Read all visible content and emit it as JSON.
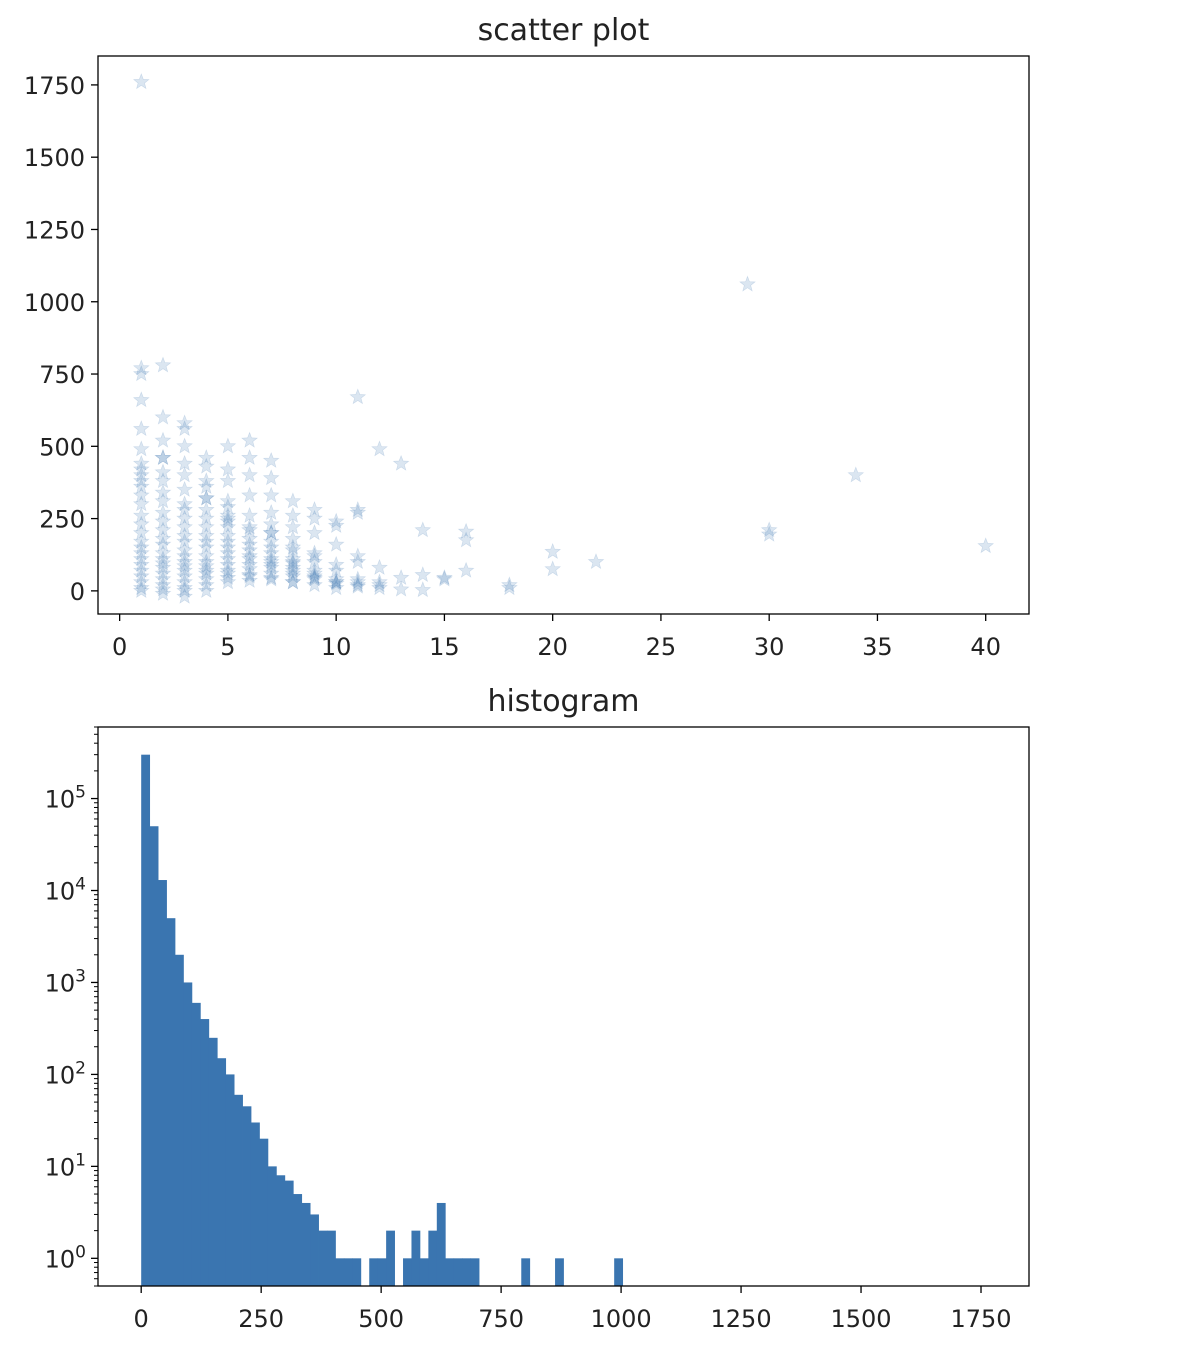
{
  "chart_data": [
    {
      "type": "scatter",
      "title": "scatter plot",
      "xlabel": "",
      "ylabel": "",
      "xlim": [
        -1,
        42
      ],
      "ylim": [
        -80,
        1850
      ],
      "x_ticks": [
        0,
        5,
        10,
        15,
        20,
        25,
        30,
        35,
        40
      ],
      "y_ticks": [
        0,
        250,
        500,
        750,
        1000,
        1250,
        1500,
        1750
      ],
      "marker": "star",
      "color": "#3a75b0",
      "alpha": 0.15,
      "series": [
        {
          "x": [
            1,
            2,
            1,
            1,
            3,
            1,
            1,
            2,
            2,
            1,
            1,
            11,
            29,
            34,
            30,
            30,
            40,
            12,
            13,
            14,
            16,
            16,
            20,
            20,
            22,
            18,
            18,
            15,
            15,
            14,
            16,
            13,
            12,
            12,
            11,
            11,
            11,
            11,
            11,
            10,
            10,
            10,
            10,
            10,
            10,
            9,
            9,
            9,
            9,
            9,
            9,
            8,
            8,
            8,
            8,
            8,
            8,
            7,
            7,
            7,
            7,
            7,
            6,
            6,
            6,
            6,
            5,
            5,
            5,
            5,
            5,
            4,
            4,
            4,
            4,
            3,
            3,
            3,
            2,
            2,
            2,
            1,
            1,
            1,
            3,
            4,
            5,
            6,
            7,
            2,
            3,
            4,
            5,
            6,
            7,
            8,
            1,
            2,
            3,
            4,
            5,
            6,
            7,
            1,
            2,
            3,
            4,
            5,
            6,
            7,
            8,
            9,
            1,
            2,
            3,
            4,
            5,
            6,
            7,
            8,
            9,
            10,
            1,
            2,
            3,
            4,
            5,
            6,
            7,
            8,
            1,
            2,
            3,
            4,
            5,
            6,
            7,
            8,
            9,
            1,
            2,
            3,
            4,
            5,
            6,
            7,
            8,
            9,
            10,
            11,
            12,
            1,
            2,
            3,
            4,
            5,
            6,
            7,
            8,
            9,
            10,
            11,
            12,
            13,
            14,
            1,
            2,
            3,
            4,
            5,
            6,
            7,
            8,
            9,
            10,
            11,
            1,
            2,
            3,
            4,
            5,
            6,
            7,
            1,
            2,
            3,
            4,
            5,
            6,
            7,
            8,
            1,
            2,
            3,
            4,
            5,
            6,
            1,
            2,
            3,
            4,
            5,
            1,
            2,
            3,
            4,
            1,
            2,
            3,
            1,
            2,
            3,
            4,
            1,
            2,
            3
          ],
          "y": [
            1760,
            780,
            770,
            750,
            580,
            660,
            560,
            600,
            460,
            490,
            420,
            670,
            1060,
            400,
            210,
            195,
            155,
            490,
            440,
            210,
            205,
            175,
            135,
            75,
            100,
            20,
            10,
            45,
            40,
            55,
            70,
            45,
            80,
            30,
            280,
            270,
            120,
            100,
            40,
            240,
            225,
            160,
            70,
            30,
            10,
            280,
            250,
            200,
            130,
            70,
            20,
            310,
            260,
            220,
            150,
            100,
            30,
            450,
            390,
            330,
            270,
            200,
            520,
            460,
            400,
            330,
            500,
            420,
            380,
            310,
            250,
            460,
            430,
            380,
            320,
            560,
            500,
            440,
            520,
            460,
            410,
            440,
            400,
            380,
            400,
            360,
            290,
            260,
            230,
            380,
            350,
            320,
            260,
            220,
            200,
            180,
            360,
            340,
            300,
            280,
            240,
            210,
            170,
            330,
            310,
            280,
            250,
            220,
            180,
            150,
            140,
            120,
            300,
            270,
            250,
            220,
            190,
            160,
            130,
            110,
            100,
            90,
            260,
            240,
            220,
            190,
            170,
            140,
            110,
            95,
            230,
            210,
            190,
            170,
            150,
            120,
            100,
            80,
            60,
            200,
            180,
            170,
            150,
            130,
            110,
            90,
            70,
            50,
            40,
            30,
            20,
            170,
            160,
            140,
            120,
            110,
            90,
            80,
            60,
            45,
            30,
            20,
            10,
            5,
            3,
            150,
            130,
            120,
            100,
            90,
            75,
            60,
            50,
            40,
            25,
            15,
            130,
            110,
            100,
            85,
            70,
            55,
            45,
            110,
            95,
            85,
            70,
            60,
            50,
            40,
            30,
            90,
            80,
            70,
            60,
            45,
            35,
            70,
            60,
            50,
            40,
            30,
            50,
            40,
            30,
            20,
            30,
            20,
            10,
            10,
            5,
            0,
            0,
            0,
            -10,
            -20
          ]
        }
      ]
    },
    {
      "type": "bar",
      "title": "histogram",
      "xlabel": "",
      "ylabel": "",
      "y_scale": "log",
      "xlim": [
        -90,
        1850
      ],
      "ylim": [
        0.5,
        600000
      ],
      "x_ticks": [
        0,
        250,
        500,
        750,
        1000,
        1250,
        1500,
        1750
      ],
      "y_ticks": [
        {
          "base": "10",
          "exp": "0",
          "value": 1
        },
        {
          "base": "10",
          "exp": "1",
          "value": 10
        },
        {
          "base": "10",
          "exp": "2",
          "value": 100
        },
        {
          "base": "10",
          "exp": "3",
          "value": 1000
        },
        {
          "base": "10",
          "exp": "4",
          "value": 10000
        },
        {
          "base": "10",
          "exp": "5",
          "value": 100000
        }
      ],
      "color": "#3a75b0",
      "bin_width": 17.6,
      "bin_start": 0,
      "counts": [
        300000,
        50000,
        13000,
        5000,
        2000,
        1000,
        600,
        400,
        250,
        150,
        100,
        60,
        45,
        30,
        20,
        10,
        8,
        7,
        5,
        4,
        3,
        2,
        2,
        1,
        1,
        1,
        0,
        1,
        1,
        2,
        0,
        1,
        2,
        1,
        2,
        4,
        1,
        1,
        1,
        1,
        0,
        0,
        0,
        0,
        0,
        1,
        0,
        0,
        0,
        1,
        0,
        0,
        0,
        0,
        0,
        0,
        1,
        0,
        0,
        0,
        0,
        0,
        0,
        0,
        0,
        0,
        0,
        0,
        0,
        0,
        0,
        0,
        0,
        0,
        0,
        0,
        0,
        0,
        0,
        0,
        0,
        0,
        0,
        0,
        0,
        0,
        0,
        0,
        0,
        0,
        0,
        0,
        0,
        0,
        0,
        0,
        0,
        0,
        0,
        0
      ]
    }
  ]
}
